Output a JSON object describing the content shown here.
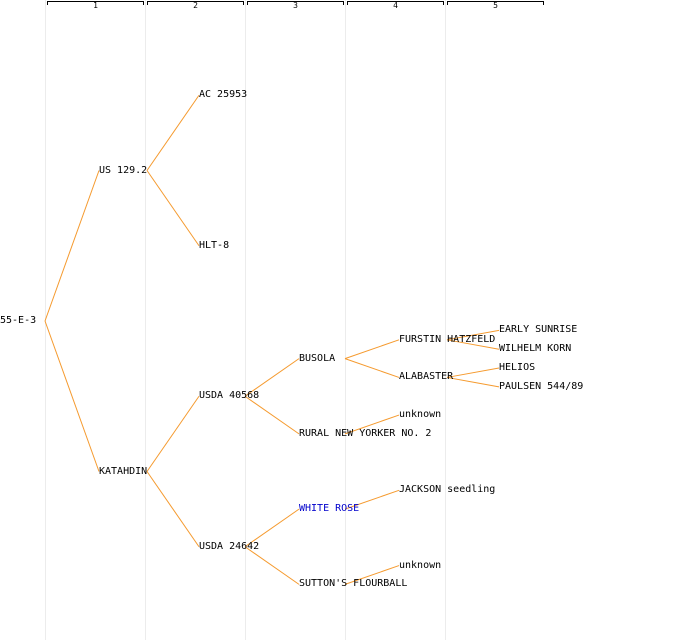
{
  "generations": [
    "1",
    "2",
    "3",
    "4",
    "5"
  ],
  "edge_color": "#f59a2e",
  "link_color": "#0000cc",
  "pedigree": {
    "name": "55-E-3",
    "link": false,
    "children": [
      {
        "name": "US 129.2",
        "link": false,
        "children": [
          {
            "name": "AC 25953",
            "link": false,
            "children": []
          },
          {
            "name": "HLT-8",
            "link": false,
            "children": []
          }
        ]
      },
      {
        "name": "KATAHDIN",
        "link": false,
        "children": [
          {
            "name": "USDA 40568",
            "link": false,
            "children": [
              {
                "name": "BUSOLA",
                "link": false,
                "children": [
                  {
                    "name": "FURSTIN HATZFELD",
                    "link": false,
                    "children": [
                      {
                        "name": "EARLY SUNRISE",
                        "link": false,
                        "children": []
                      },
                      {
                        "name": "WILHELM KORN",
                        "link": false,
                        "children": []
                      }
                    ]
                  },
                  {
                    "name": "ALABASTER",
                    "link": false,
                    "children": [
                      {
                        "name": "HELIOS",
                        "link": false,
                        "children": []
                      },
                      {
                        "name": "PAULSEN 544/89",
                        "link": false,
                        "children": []
                      }
                    ]
                  }
                ]
              },
              {
                "name": "RURAL NEW YORKER NO. 2",
                "link": false,
                "children": [
                  {
                    "name": "unknown",
                    "link": false,
                    "children": []
                  }
                ]
              }
            ]
          },
          {
            "name": "USDA 24642",
            "link": false,
            "children": [
              {
                "name": "WHITE ROSE",
                "link": true,
                "children": [
                  {
                    "name": "JACKSON seedling",
                    "link": false,
                    "children": []
                  }
                ]
              },
              {
                "name": "SUTTON'S FLOURBALL",
                "link": false,
                "children": [
                  {
                    "name": "unknown",
                    "link": false,
                    "children": []
                  }
                ]
              }
            ]
          }
        ]
      }
    ]
  }
}
